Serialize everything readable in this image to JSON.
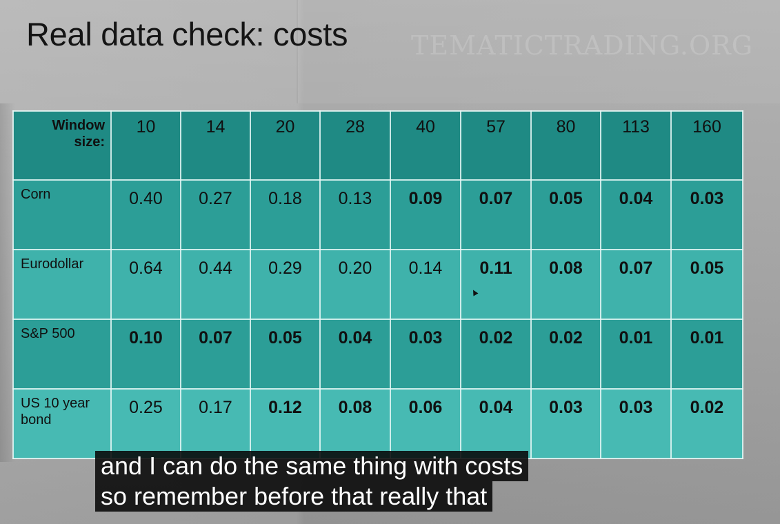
{
  "slide": {
    "title": "Real data check: costs",
    "watermark": "TEMATICTRADING.ORG"
  },
  "table": {
    "corner_label": "Window\nsize:",
    "window_sizes": [
      "10",
      "14",
      "20",
      "28",
      "40",
      "57",
      "80",
      "113",
      "160"
    ],
    "rows": [
      {
        "label": "Corn",
        "values": [
          "0.40",
          "0.27",
          "0.18",
          "0.13",
          "0.09",
          "0.07",
          "0.05",
          "0.04",
          "0.03"
        ],
        "bold": [
          false,
          false,
          false,
          false,
          true,
          true,
          true,
          true,
          true
        ]
      },
      {
        "label": "Eurodollar",
        "values": [
          "0.64",
          "0.44",
          "0.29",
          "0.20",
          "0.14",
          "0.11",
          "0.08",
          "0.07",
          "0.05"
        ],
        "bold": [
          false,
          false,
          false,
          false,
          false,
          true,
          true,
          true,
          true
        ]
      },
      {
        "label": "S&P 500",
        "values": [
          "0.10",
          "0.07",
          "0.05",
          "0.04",
          "0.03",
          "0.02",
          "0.02",
          "0.01",
          "0.01"
        ],
        "bold": [
          true,
          true,
          true,
          true,
          true,
          true,
          true,
          true,
          true
        ]
      },
      {
        "label": "US 10 year\nbond",
        "values": [
          "0.25",
          "0.17",
          "0.12",
          "0.08",
          "0.06",
          "0.04",
          "0.03",
          "0.03",
          "0.02"
        ],
        "bold": [
          false,
          false,
          true,
          true,
          true,
          true,
          true,
          true,
          true
        ]
      }
    ]
  },
  "captions": {
    "line1": "and I can do the same thing with costs",
    "line2": "so remember before that really that"
  },
  "colors": {
    "header_teal": "#1f8a84",
    "row_teal_dark": "#2c9e97",
    "row_teal_light": "#3fb2ab",
    "caption_bg": "#080808"
  }
}
